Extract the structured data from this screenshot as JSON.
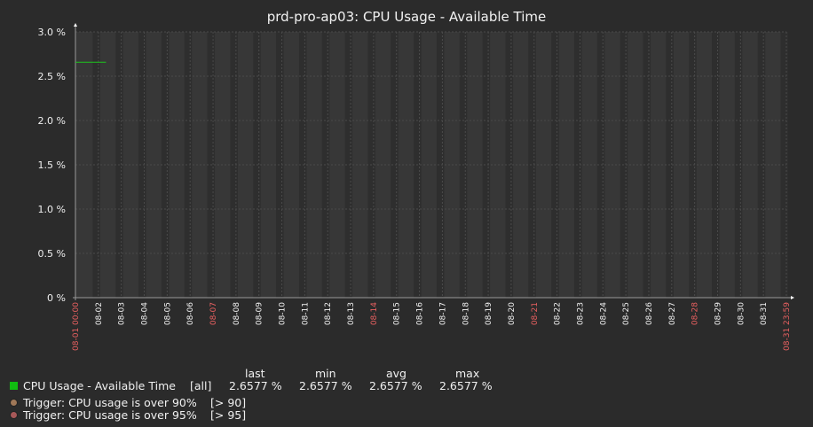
{
  "chart_data": {
    "type": "line",
    "title": "prd-pro-ap03: CPU Usage - Available Time",
    "y_tick_labels": [
      "0 %",
      "0.5 %",
      "1.0 %",
      "1.5 %",
      "2.0 %",
      "2.5 %",
      "3.0 %"
    ],
    "ylim": [
      0,
      3.0
    ],
    "x_tick_labels": [
      "08-01 00:00",
      "08-02",
      "08-03",
      "08-04",
      "08-05",
      "08-06",
      "08-07",
      "08-08",
      "08-09",
      "08-10",
      "08-11",
      "08-12",
      "08-13",
      "08-14",
      "08-15",
      "08-16",
      "08-17",
      "08-18",
      "08-19",
      "08-20",
      "08-21",
      "08-22",
      "08-23",
      "08-24",
      "08-25",
      "08-26",
      "08-27",
      "08-28",
      "08-29",
      "08-30",
      "08-31",
      "08-31 23:59"
    ],
    "x_tick_red": [
      true,
      false,
      false,
      false,
      false,
      false,
      true,
      false,
      false,
      false,
      false,
      false,
      false,
      true,
      false,
      false,
      false,
      false,
      false,
      false,
      true,
      false,
      false,
      false,
      false,
      false,
      false,
      true,
      false,
      false,
      false,
      true
    ],
    "grid": true,
    "series": [
      {
        "name": "CPU Usage - Available Time",
        "color": "#1ec41e",
        "x": [
          "08-01 00:00",
          "08-02 08:00"
        ],
        "y": [
          2.6577,
          2.6577
        ]
      }
    ],
    "colors": {
      "background": "#2b2b2b",
      "plot_light": "#373737",
      "plot_dark": "#2e2e2e",
      "grid": "#4a4a4a",
      "axis": "#9a9a9a",
      "red_label": "#e86060"
    }
  },
  "legend": {
    "headers": {
      "last": "last",
      "min": "min",
      "avg": "avg",
      "max": "max"
    },
    "series_row": {
      "color": "#11bb11",
      "name": "CPU Usage - Available Time",
      "func": "[all]",
      "last": "2.6577 %",
      "min": "2.6577 %",
      "avg": "2.6577 %",
      "max": "2.6577 %"
    },
    "triggers": [
      {
        "color": "#a07858",
        "label": "Trigger: CPU usage is over 90%",
        "condition": "[> 90]"
      },
      {
        "color": "#a85858",
        "label": "Trigger: CPU usage is over 95%",
        "condition": "[> 95]"
      }
    ]
  }
}
